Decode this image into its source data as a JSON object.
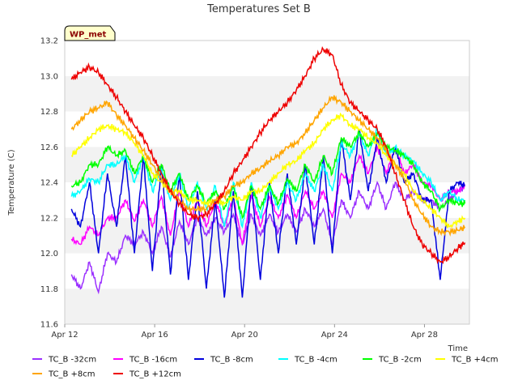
{
  "chart_data": {
    "type": "line",
    "title": "Temperatures Set B",
    "xlabel": "Time",
    "ylabel": "Temperature (C)",
    "badge": "WP_met",
    "x_tick_labels": [
      "Apr 12",
      "Apr 16",
      "Apr 20",
      "Apr 24",
      "Apr 28"
    ],
    "x_ticks": [
      12,
      16,
      20,
      24,
      28
    ],
    "y_ticks": [
      11.6,
      11.8,
      12.0,
      12.2,
      12.4,
      12.6,
      12.8,
      13.0,
      13.2
    ],
    "y_tick_labels": [
      "11.6",
      "11.8",
      "12.0",
      "12.2",
      "12.4",
      "12.6",
      "12.8",
      "13.0",
      "13.2"
    ],
    "xlim": [
      12,
      30
    ],
    "ylim": [
      11.6,
      13.2
    ],
    "grid": "horizontal bands",
    "legend_position": "bottom",
    "x_days": [
      12.3,
      12.7,
      13.1,
      13.5,
      13.9,
      14.3,
      14.7,
      15.1,
      15.5,
      15.9,
      16.3,
      16.7,
      17.1,
      17.5,
      17.9,
      18.3,
      18.7,
      19.1,
      19.5,
      19.9,
      20.3,
      20.7,
      21.1,
      21.5,
      21.9,
      22.3,
      22.7,
      23.1,
      23.5,
      23.9,
      24.3,
      24.7,
      25.1,
      25.5,
      25.9,
      26.3,
      26.7,
      27.1,
      27.5,
      27.9,
      28.3,
      28.7,
      29.1,
      29.5,
      29.8
    ],
    "series": [
      {
        "name": "TC_B -32cm",
        "color": "#9b30ff",
        "values": [
          11.88,
          11.8,
          11.95,
          11.78,
          12.0,
          11.95,
          12.1,
          12.05,
          12.12,
          12.0,
          12.15,
          11.98,
          12.18,
          12.05,
          12.2,
          12.1,
          12.2,
          12.12,
          12.22,
          12.05,
          12.22,
          12.1,
          12.22,
          12.12,
          12.22,
          12.12,
          12.25,
          12.15,
          12.25,
          12.05,
          12.3,
          12.2,
          12.35,
          12.25,
          12.4,
          12.25,
          12.4,
          12.3,
          12.35,
          12.3,
          12.3,
          12.25,
          12.3,
          12.35,
          12.38
        ]
      },
      {
        "name": "TC_B -16cm",
        "color": "#ff00ff",
        "values": [
          12.08,
          12.05,
          12.15,
          12.1,
          12.2,
          12.2,
          12.3,
          12.18,
          12.3,
          12.15,
          12.32,
          12.1,
          12.35,
          12.15,
          12.3,
          12.15,
          12.3,
          12.15,
          12.32,
          12.05,
          12.33,
          12.15,
          12.32,
          12.2,
          12.33,
          12.2,
          12.35,
          12.25,
          12.35,
          12.2,
          12.45,
          12.4,
          12.55,
          12.45,
          12.6,
          12.45,
          12.6,
          12.45,
          12.5,
          12.4,
          12.38,
          12.3,
          12.35,
          12.35,
          12.38
        ]
      },
      {
        "name": "TC_B -8cm",
        "color": "#0000dd",
        "values": [
          12.25,
          12.15,
          12.4,
          12.0,
          12.45,
          12.15,
          12.55,
          12.0,
          12.55,
          11.9,
          12.5,
          11.88,
          12.45,
          11.85,
          12.35,
          11.8,
          12.3,
          11.75,
          12.35,
          11.75,
          12.4,
          11.85,
          12.4,
          12.0,
          12.45,
          12.05,
          12.5,
          12.05,
          12.55,
          12.0,
          12.65,
          12.3,
          12.7,
          12.35,
          12.65,
          12.4,
          12.6,
          12.4,
          12.45,
          12.3,
          12.3,
          11.85,
          12.35,
          12.4,
          12.38
        ]
      },
      {
        "name": "TC_B -4cm",
        "color": "#00ffff",
        "values": [
          12.32,
          12.35,
          12.42,
          12.4,
          12.5,
          12.5,
          12.55,
          12.4,
          12.55,
          12.35,
          12.48,
          12.3,
          12.45,
          12.25,
          12.4,
          12.25,
          12.38,
          12.15,
          12.4,
          12.15,
          12.4,
          12.2,
          12.38,
          12.25,
          12.4,
          12.3,
          12.45,
          12.35,
          12.5,
          12.35,
          12.62,
          12.55,
          12.68,
          12.55,
          12.7,
          12.55,
          12.6,
          12.55,
          12.52,
          12.45,
          12.4,
          12.3,
          12.35,
          12.3,
          12.3
        ]
      },
      {
        "name": "TC_B -2cm",
        "color": "#00ff00",
        "values": [
          12.38,
          12.4,
          12.5,
          12.5,
          12.6,
          12.55,
          12.58,
          12.45,
          12.55,
          12.4,
          12.5,
          12.35,
          12.45,
          12.3,
          12.38,
          12.28,
          12.35,
          12.25,
          12.38,
          12.2,
          12.38,
          12.25,
          12.38,
          12.28,
          12.42,
          12.35,
          12.5,
          12.4,
          12.55,
          12.45,
          12.65,
          12.6,
          12.68,
          12.6,
          12.68,
          12.6,
          12.58,
          12.55,
          12.5,
          12.4,
          12.35,
          12.25,
          12.3,
          12.28,
          12.28
        ]
      },
      {
        "name": "TC_B +4cm",
        "color": "#ffff00",
        "values": [
          12.55,
          12.6,
          12.65,
          12.7,
          12.72,
          12.7,
          12.68,
          12.62,
          12.55,
          12.45,
          12.4,
          12.35,
          12.35,
          12.3,
          12.3,
          12.28,
          12.3,
          12.28,
          12.32,
          12.3,
          12.35,
          12.35,
          12.4,
          12.45,
          12.5,
          12.52,
          12.58,
          12.62,
          12.7,
          12.75,
          12.78,
          12.72,
          12.7,
          12.65,
          12.62,
          12.55,
          12.5,
          12.45,
          12.35,
          12.3,
          12.25,
          12.2,
          12.15,
          12.18,
          12.2
        ]
      },
      {
        "name": "TC_B +8cm",
        "color": "#ffa500",
        "values": [
          12.7,
          12.75,
          12.8,
          12.82,
          12.85,
          12.78,
          12.72,
          12.65,
          12.58,
          12.5,
          12.42,
          12.35,
          12.3,
          12.25,
          12.25,
          12.25,
          12.3,
          12.32,
          12.38,
          12.4,
          12.45,
          12.48,
          12.52,
          12.55,
          12.6,
          12.62,
          12.68,
          12.75,
          12.82,
          12.88,
          12.85,
          12.8,
          12.75,
          12.7,
          12.65,
          12.58,
          12.5,
          12.42,
          12.3,
          12.22,
          12.15,
          12.12,
          12.12,
          12.13,
          12.15
        ]
      },
      {
        "name": "TC_B +12cm",
        "color": "#ee0000",
        "values": [
          12.98,
          13.02,
          13.05,
          13.02,
          12.95,
          12.88,
          12.8,
          12.72,
          12.65,
          12.55,
          12.45,
          12.35,
          12.28,
          12.22,
          12.2,
          12.22,
          12.28,
          12.35,
          12.45,
          12.52,
          12.6,
          12.68,
          12.75,
          12.8,
          12.85,
          12.92,
          13.0,
          13.1,
          13.15,
          13.12,
          12.95,
          12.85,
          12.8,
          12.75,
          12.7,
          12.6,
          12.45,
          12.3,
          12.15,
          12.05,
          12.0,
          11.95,
          11.98,
          12.03,
          12.06
        ]
      }
    ]
  }
}
